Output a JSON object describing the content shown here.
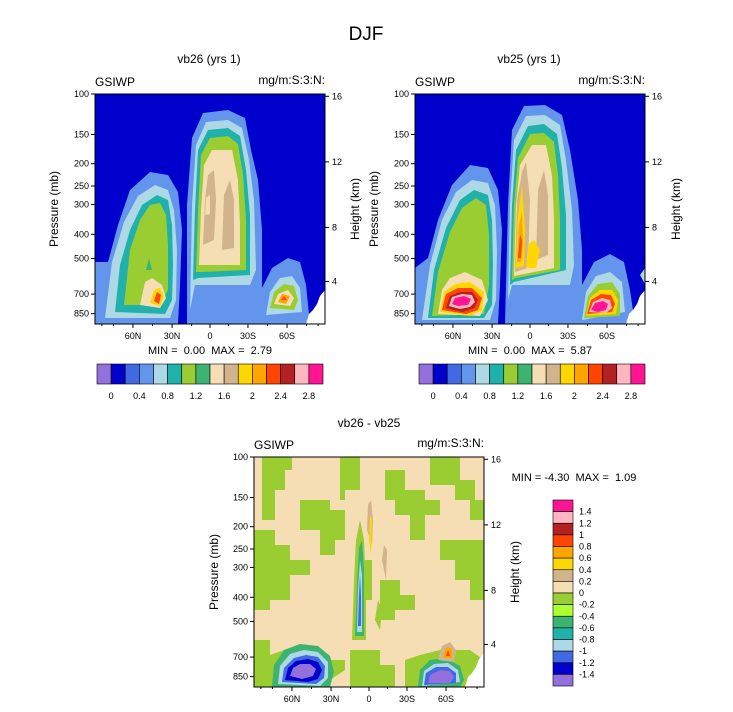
{
  "main_title": "DJF",
  "chart_data": [
    {
      "type": "heatmap",
      "id": "left",
      "title": "vb26 (yrs 1)",
      "left_label": "GSIWP",
      "right_label": "mg/m:S:3:N:",
      "ylabel": "Pressure (mb)",
      "ylabel_right": "Height (km)",
      "pressure_ticks": [
        "100",
        "150",
        "200",
        "250",
        "300",
        "400",
        "500",
        "700",
        "850"
      ],
      "height_ticks": [
        "16",
        "12",
        "8",
        "4"
      ],
      "lat_ticks": [
        "60N",
        "30N",
        "0",
        "30S",
        "60S"
      ],
      "stats": "MIN =  0.00  MAX =  2.79",
      "min": 0.0,
      "max": 2.79
    },
    {
      "type": "heatmap",
      "id": "right",
      "title": "vb25 (yrs 1)",
      "left_label": "GSIWP",
      "right_label": "mg/m:S:3:N:",
      "ylabel": "Pressure (mb)",
      "ylabel_right": "Height (km)",
      "pressure_ticks": [
        "100",
        "150",
        "200",
        "250",
        "300",
        "400",
        "500",
        "700",
        "850"
      ],
      "height_ticks": [
        "16",
        "12",
        "8",
        "4"
      ],
      "lat_ticks": [
        "60N",
        "30N",
        "0",
        "30S",
        "60S"
      ],
      "stats": "MIN =  0.00  MAX =  5.87",
      "min": 0.0,
      "max": 5.87
    },
    {
      "type": "heatmap",
      "id": "diff",
      "title": "vb26 - vb25",
      "left_label": "GSIWP",
      "right_label": "mg/m:S:3:N:",
      "ylabel": "Pressure (mb)",
      "ylabel_right": "Height (km)",
      "pressure_ticks": [
        "100",
        "150",
        "200",
        "250",
        "300",
        "400",
        "500",
        "700",
        "850"
      ],
      "height_ticks": [
        "16",
        "12",
        "8",
        "4"
      ],
      "lat_ticks": [
        "60N",
        "30N",
        "0",
        "30S",
        "60S"
      ],
      "stats": "MIN = -4.30  MAX =  1.09",
      "min": -4.3,
      "max": 1.09
    }
  ],
  "colorbar_top": {
    "labels": [
      "0",
      "0.4",
      "0.8",
      "1.2",
      "1.6",
      "2",
      "2.4",
      "2.8"
    ],
    "colors": [
      "#9370DB",
      "#0000CD",
      "#4169E1",
      "#6495ED",
      "#ADD8E6",
      "#20B2AA",
      "#9ACD32",
      "#3CB371",
      "#F5DEB3",
      "#D2B48C",
      "#FFD700",
      "#FFA500",
      "#FF4500",
      "#B22222",
      "#FFB6C1",
      "#FF1493"
    ]
  },
  "colorbar_diff": {
    "labels": [
      "1.4",
      "1.2",
      "1",
      "0.8",
      "0.6",
      "0.4",
      "0.2",
      "0",
      "-0.2",
      "-0.4",
      "-0.6",
      "-0.8",
      "-1",
      "-1.2",
      "-1.4"
    ],
    "colors": [
      "#FF1493",
      "#FFB6C1",
      "#B22222",
      "#FF4500",
      "#FFA500",
      "#FFD700",
      "#D2B48C",
      "#F5DEB3",
      "#9ACD32",
      "#ADFF2F",
      "#3CB371",
      "#20B2AA",
      "#ADD8E6",
      "#4169E1",
      "#0000CD",
      "#9370DB"
    ]
  }
}
